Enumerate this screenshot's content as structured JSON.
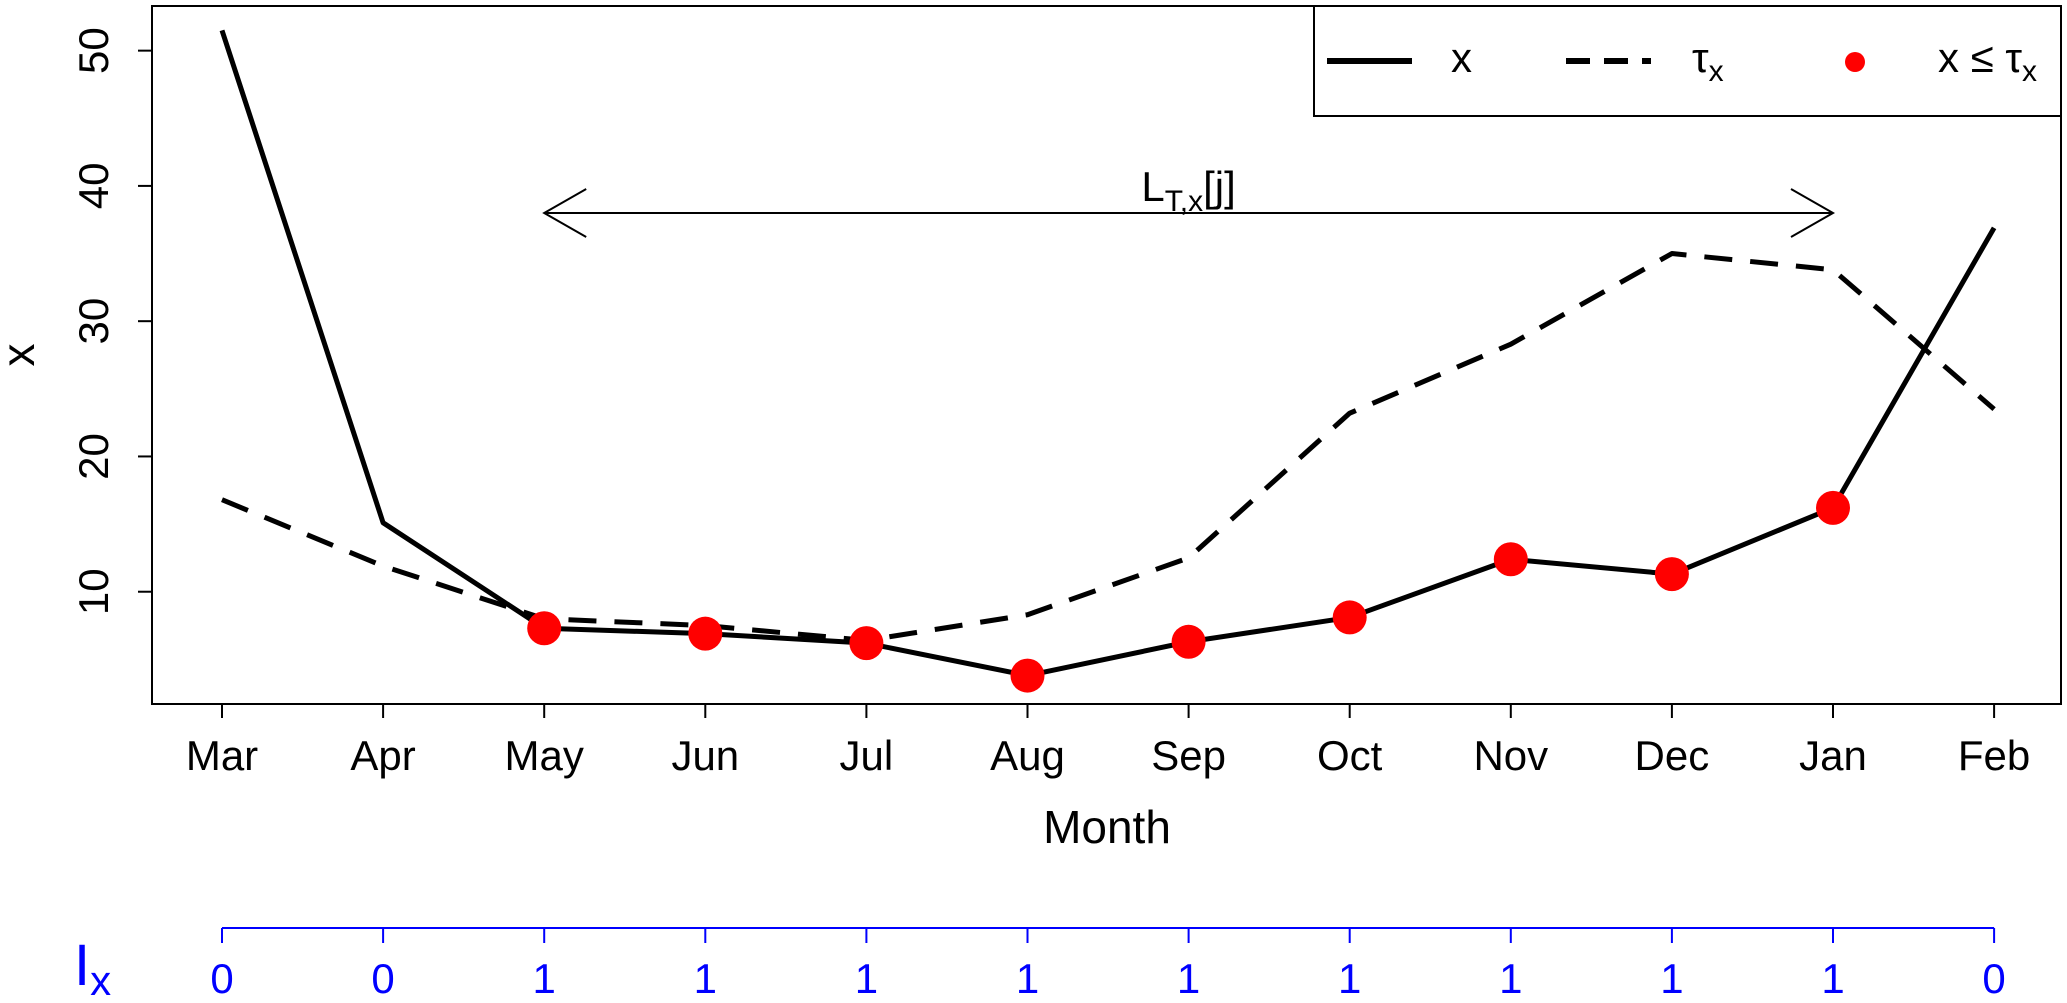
{
  "chart_data": {
    "type": "line",
    "xlabel": "Month",
    "ylabel": "x",
    "categories": [
      "Mar",
      "Apr",
      "May",
      "Jun",
      "Jul",
      "Aug",
      "Sep",
      "Oct",
      "Nov",
      "Dec",
      "Jan",
      "Feb"
    ],
    "yticks": [
      10,
      20,
      30,
      40,
      50
    ],
    "ylim": [
      1.7,
      53.3
    ],
    "grid": false,
    "legend_position": "top-right",
    "series": [
      {
        "name": "x",
        "style": "solid",
        "color": "#000000",
        "values": [
          51.5,
          15.1,
          7.3,
          6.9,
          6.2,
          3.8,
          6.3,
          8.1,
          12.4,
          11.3,
          16.2,
          36.9
        ]
      },
      {
        "name": "τx",
        "style": "dashed",
        "color": "#000000",
        "values": [
          16.8,
          11.9,
          8.0,
          7.5,
          6.4,
          8.3,
          12.5,
          23.2,
          28.3,
          35.0,
          33.8,
          23.5
        ]
      }
    ],
    "highlight": {
      "name": "x ≤ τx",
      "color": "#ff0000",
      "indices": [
        2,
        3,
        4,
        5,
        6,
        7,
        8,
        9,
        10
      ]
    },
    "annotation": {
      "label": "LT,x[j]",
      "from_index": 2,
      "to_index": 10,
      "y": 38
    },
    "indicator": {
      "label": "Ix",
      "color": "#0000ff",
      "values": [
        "0",
        "0",
        "1",
        "1",
        "1",
        "1",
        "1",
        "1",
        "1",
        "1",
        "1",
        "0"
      ]
    }
  }
}
